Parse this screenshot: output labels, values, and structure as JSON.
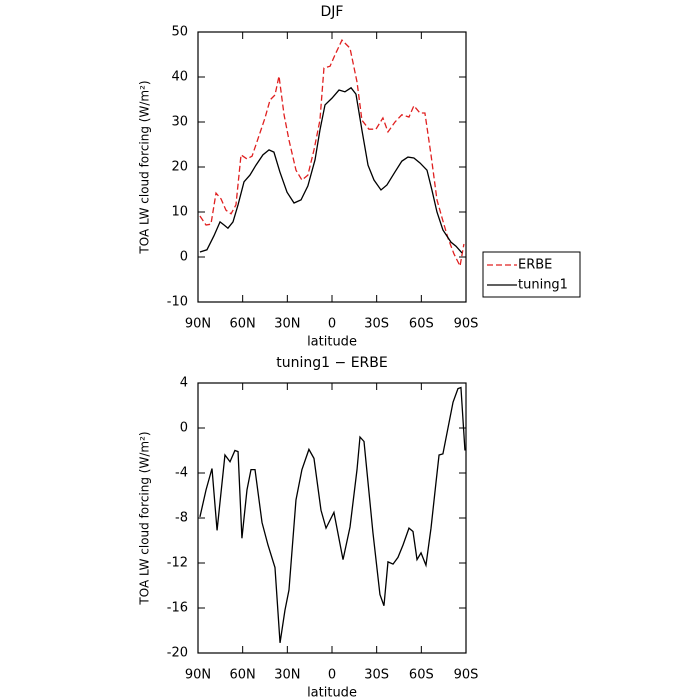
{
  "chart_data": [
    {
      "type": "line",
      "title": "DJF",
      "xlabel": "latitude",
      "ylabel": "TOA LW cloud forcing (W/m²)",
      "xlim": [
        90,
        -90
      ],
      "xticks": [
        {
          "value": 90,
          "label": "90N"
        },
        {
          "value": 60,
          "label": "60N"
        },
        {
          "value": 30,
          "label": "30N"
        },
        0,
        {
          "value": -30,
          "label": "30S"
        },
        {
          "value": -60,
          "label": "60S"
        },
        {
          "value": -90,
          "label": "90S"
        }
      ],
      "ylim": [
        -10,
        50
      ],
      "yticks": [
        -10,
        0,
        10,
        20,
        30,
        40,
        50
      ],
      "legend": "right",
      "series": [
        {
          "name": "ERBE",
          "color": "#e02020",
          "dash": true,
          "x": [
            88.7,
            84.6,
            81.3,
            77.9,
            74.5,
            71.2,
            67.8,
            64.5,
            61.1,
            57.1,
            53.7,
            50.4,
            45.0,
            41.6,
            38.3,
            35.6,
            32.2,
            28.9,
            24.2,
            20.2,
            16.2,
            12.1,
            8.1,
            5.4,
            1.3,
            -2.0,
            -6.7,
            -12.1,
            -16.8,
            -20.1,
            -24.8,
            -29.5,
            -34.2,
            -37.6,
            -42.3,
            -46.9,
            -51.7,
            -55.0,
            -59.1,
            -62.4,
            -66.5,
            -70.5,
            -73.9,
            -77.9,
            -81.9,
            -86.0,
            -88.6
          ],
          "values": [
            9.1,
            7.1,
            7.3,
            14.2,
            12.9,
            10.4,
            9.6,
            11.6,
            22.7,
            21.8,
            22.4,
            25.6,
            30.9,
            34.9,
            36.0,
            40.2,
            31.6,
            26.0,
            19.3,
            17.1,
            18.2,
            23.8,
            30.4,
            42.0,
            42.4,
            44.9,
            48.2,
            46.4,
            38.9,
            30.4,
            28.4,
            28.4,
            30.9,
            27.8,
            30.0,
            31.6,
            31.1,
            33.6,
            32.0,
            32.0,
            22.7,
            12.7,
            8.7,
            4.2,
            0.7,
            -2.0,
            2.9
          ]
        },
        {
          "name": "tuning1",
          "color": "#000000",
          "dash": false,
          "x": [
            88.7,
            84.0,
            79.3,
            75.2,
            72.5,
            69.9,
            66.5,
            63.1,
            59.1,
            55.1,
            51.1,
            46.4,
            42.3,
            39.0,
            35.0,
            30.2,
            25.5,
            20.8,
            16.2,
            11.4,
            8.1,
            4.7,
            0.0,
            -4.7,
            -8.7,
            -12.8,
            -16.1,
            -20.1,
            -24.2,
            -28.2,
            -32.9,
            -36.9,
            -42.3,
            -46.9,
            -51.0,
            -55.0,
            -59.1,
            -63.8,
            -67.1,
            -70.5,
            -74.5,
            -79.9,
            -83.3,
            -87.3
          ],
          "values": [
            1.1,
            1.6,
            4.7,
            7.8,
            7.1,
            6.4,
            7.8,
            11.6,
            16.7,
            18.2,
            20.4,
            22.7,
            23.8,
            23.3,
            18.9,
            14.4,
            12.0,
            12.7,
            15.8,
            21.6,
            28.2,
            33.8,
            35.3,
            37.1,
            36.7,
            37.6,
            36.2,
            28.2,
            20.4,
            17.1,
            14.9,
            16.0,
            18.9,
            21.3,
            22.2,
            22.0,
            20.9,
            19.3,
            14.9,
            10.0,
            6.0,
            3.3,
            2.4,
            0.9
          ]
        }
      ]
    },
    {
      "type": "line",
      "title": "tuning1 − ERBE",
      "xlabel": "latitude",
      "ylabel": "TOA LW cloud forcing (W/m²)",
      "xlim": [
        90,
        -90
      ],
      "xticks": [
        {
          "value": 90,
          "label": "90N"
        },
        {
          "value": 60,
          "label": "60N"
        },
        {
          "value": 30,
          "label": "30N"
        },
        0,
        {
          "value": -30,
          "label": "30S"
        },
        {
          "value": -60,
          "label": "60S"
        },
        {
          "value": -90,
          "label": "90S"
        }
      ],
      "ylim": [
        -20,
        4
      ],
      "yticks": [
        -20,
        -16,
        -12,
        -8,
        -4,
        0,
        4
      ],
      "series": [
        {
          "color": "#000000",
          "dash": false,
          "x": [
            88.7,
            84.6,
            80.6,
            77.2,
            71.9,
            68.5,
            65.2,
            63.1,
            60.5,
            57.1,
            54.4,
            51.7,
            47.0,
            43.0,
            38.3,
            34.9,
            31.6,
            28.9,
            24.2,
            20.2,
            15.5,
            12.1,
            7.4,
            4.0,
            -1.3,
            -7.4,
            -12.1,
            -16.8,
            -18.8,
            -21.5,
            -27.5,
            -32.2,
            -34.9,
            -37.6,
            -41.0,
            -44.3,
            -47.7,
            -51.7,
            -54.4,
            -57.1,
            -59.8,
            -63.1,
            -66.5,
            -69.8,
            -71.9,
            -74.5,
            -77.9,
            -81.3,
            -84.6,
            -86.6,
            -89.3
          ],
          "values": [
            -7.9,
            -5.5,
            -3.6,
            -9.1,
            -2.4,
            -3.0,
            -2.0,
            -2.1,
            -9.8,
            -5.5,
            -3.7,
            -3.7,
            -8.4,
            -10.4,
            -12.4,
            -19.1,
            -16.2,
            -14.4,
            -6.4,
            -3.7,
            -1.9,
            -2.7,
            -7.3,
            -8.9,
            -7.5,
            -11.7,
            -8.8,
            -3.7,
            -0.8,
            -1.2,
            -9.3,
            -14.8,
            -15.8,
            -11.9,
            -12.1,
            -11.5,
            -10.4,
            -8.9,
            -9.2,
            -11.7,
            -11.1,
            -12.2,
            -8.9,
            -4.9,
            -2.4,
            -2.3,
            0.0,
            2.3,
            3.5,
            3.6,
            -2.0
          ]
        }
      ]
    }
  ]
}
